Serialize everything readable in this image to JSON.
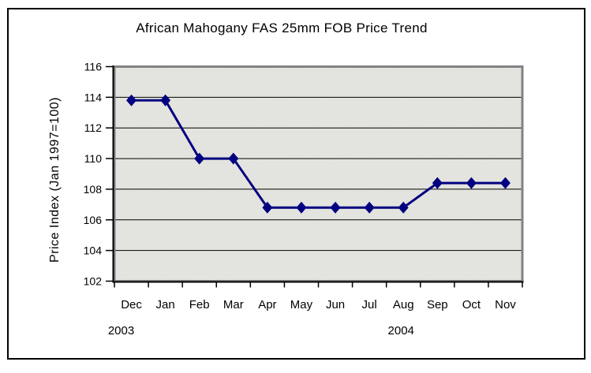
{
  "window": {
    "background_color": "#ffffff",
    "frame_border_color": "#000000"
  },
  "chart_data": {
    "type": "line",
    "title": "African Mahogany FAS 25mm FOB Price Trend",
    "xlabel": "",
    "ylabel": "Price Index (Jan 1997=100)",
    "categories": [
      "Dec",
      "Jan",
      "Feb",
      "Mar",
      "Apr",
      "May",
      "Jun",
      "Jul",
      "Aug",
      "Sep",
      "Oct",
      "Nov"
    ],
    "values": [
      113.8,
      113.8,
      110.0,
      110.0,
      106.8,
      106.8,
      106.8,
      106.8,
      106.8,
      108.4,
      108.4,
      108.4
    ],
    "year_labels": [
      {
        "label": "2003",
        "under_category": "Dec"
      },
      {
        "label": "2004",
        "under_category": "Aug"
      }
    ],
    "ylim": [
      102,
      116
    ],
    "yticks": [
      102,
      104,
      106,
      108,
      110,
      112,
      114,
      116
    ],
    "grid": true,
    "legend": "none",
    "marker": "diamond",
    "line_color": "#000080",
    "marker_color": "#000080",
    "gridline_color": "#000000",
    "axis_color": "#000000",
    "plot_border_color": "#848284",
    "plot_bg_colors": [
      "#ffffff",
      "#c8c8bf"
    ]
  }
}
